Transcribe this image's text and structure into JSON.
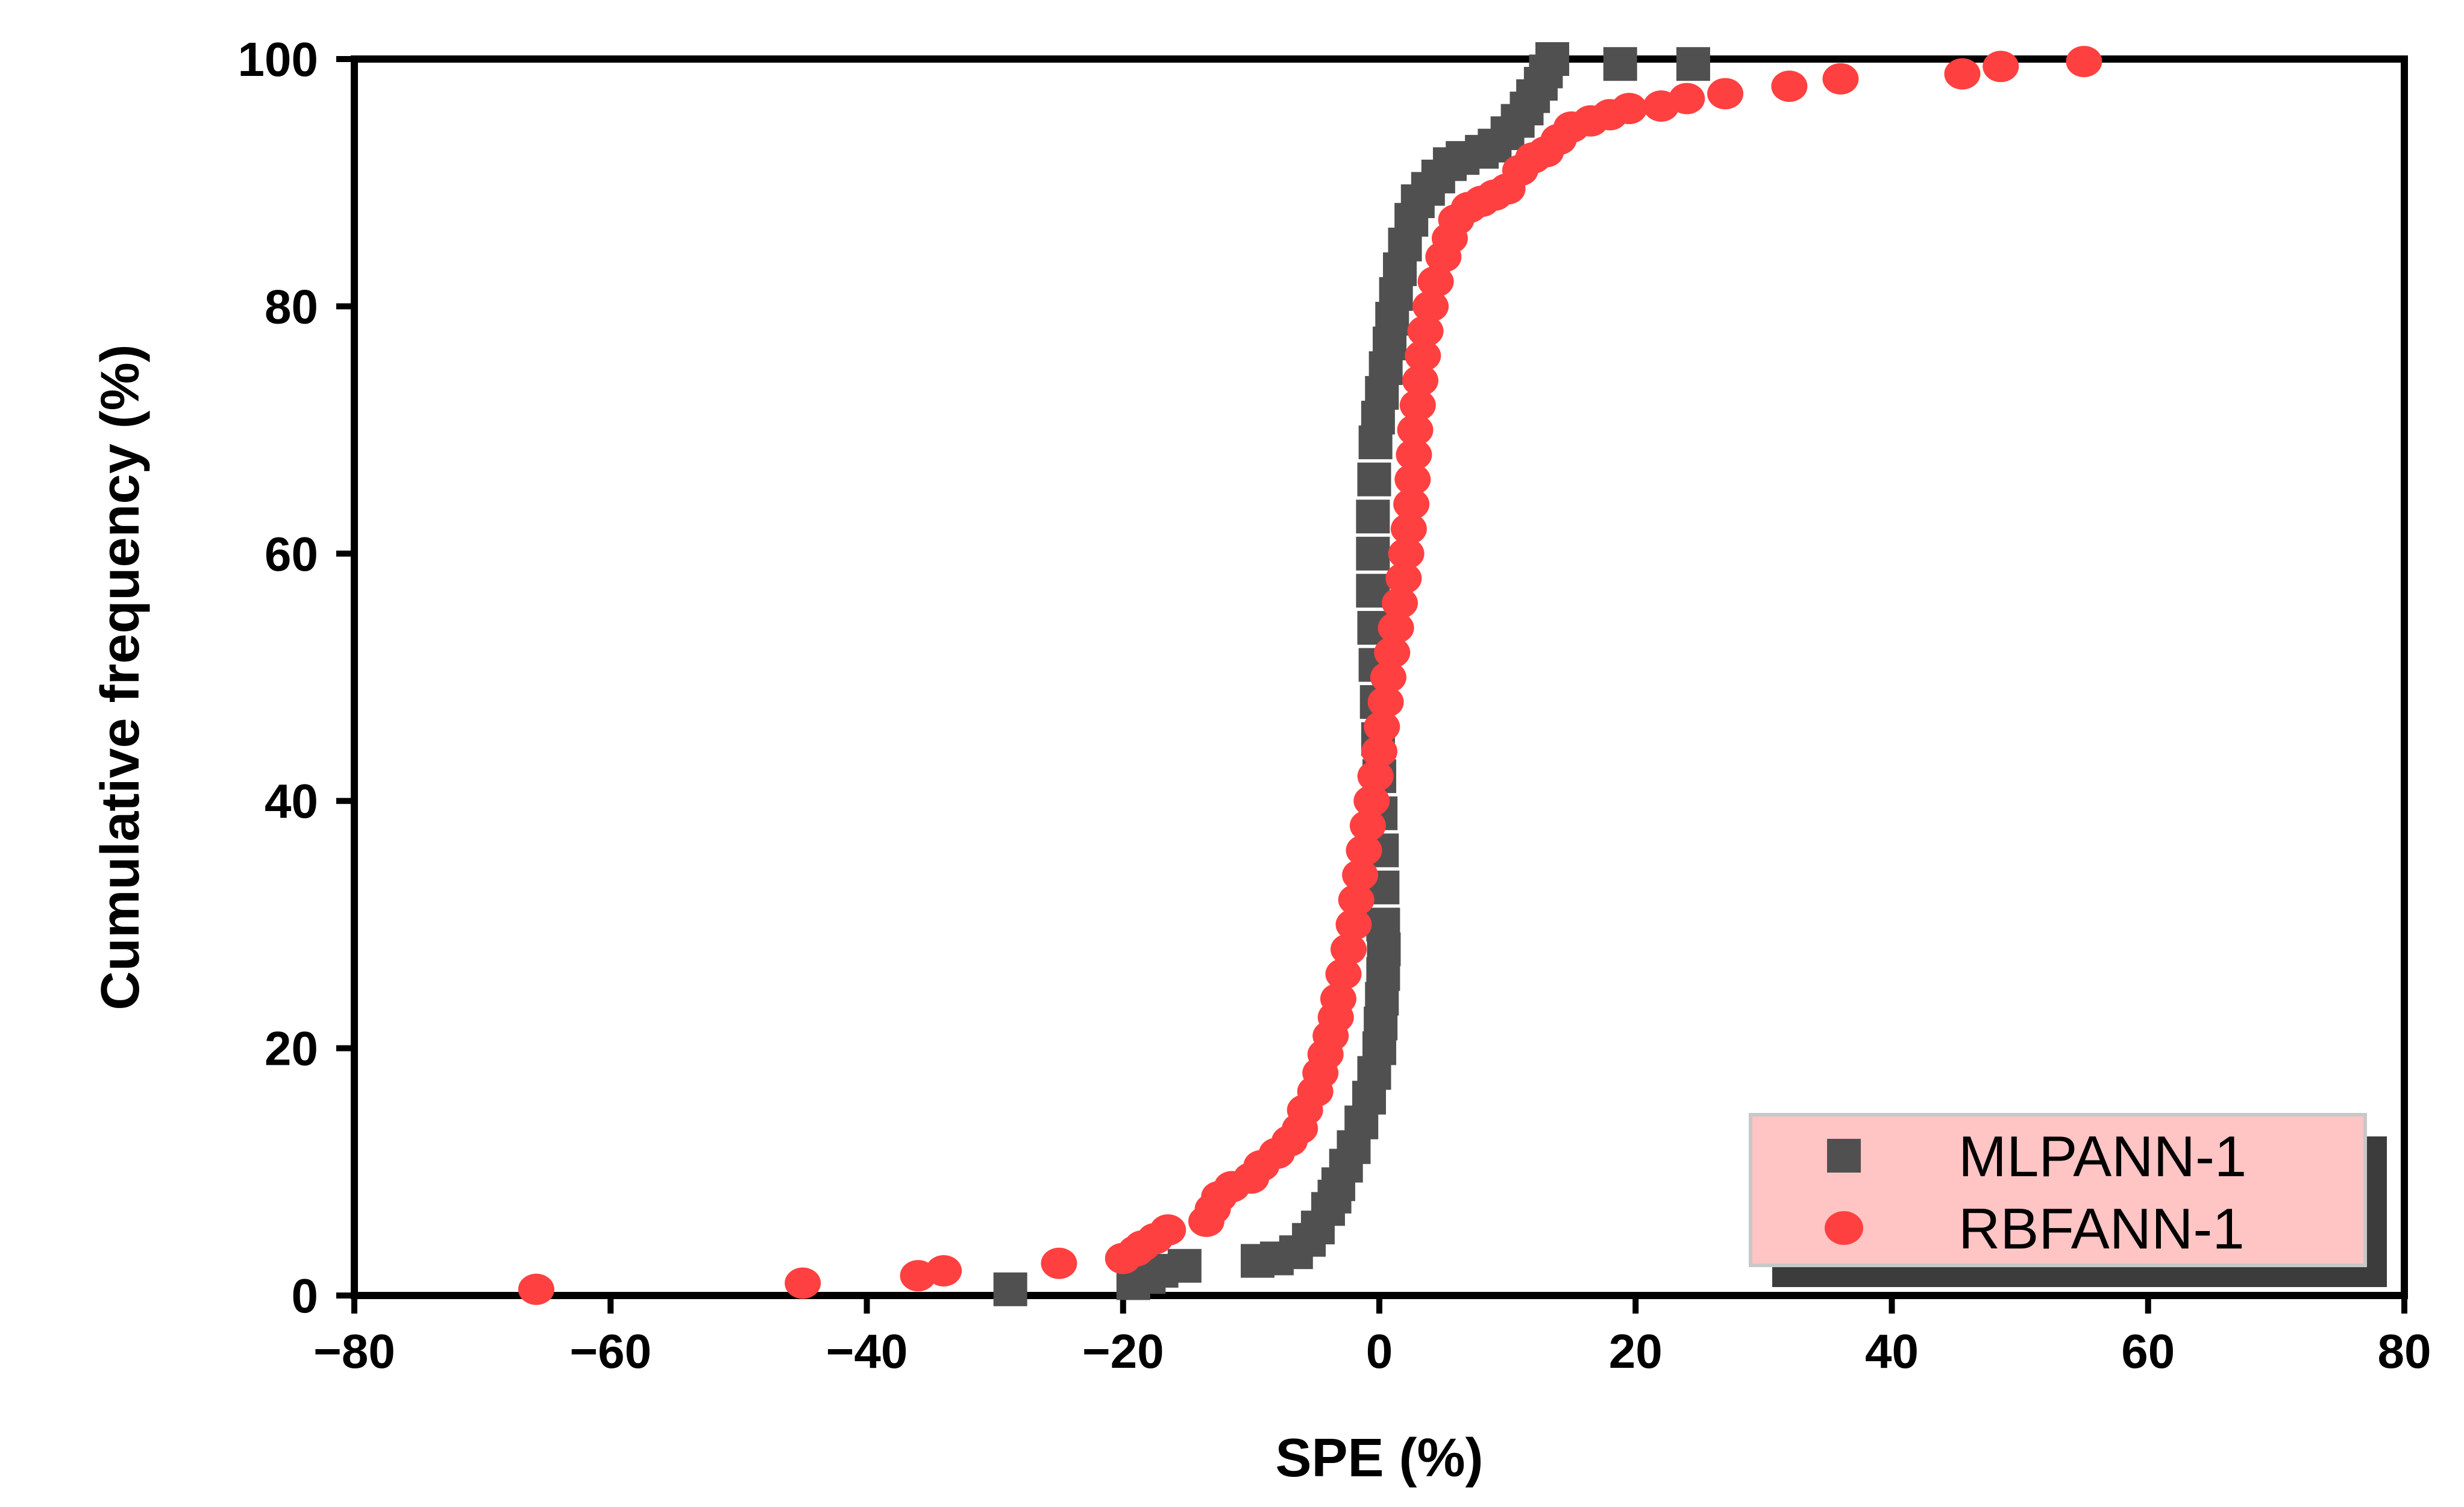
{
  "chart_data": {
    "type": "scatter",
    "title": "",
    "xlabel": "SPE (%)",
    "ylabel": "Cumulative frequency (%)",
    "xlim": [
      -80,
      80
    ],
    "ylim": [
      0,
      100
    ],
    "xticks": [
      "−80",
      "−60",
      "−40",
      "−20",
      "0",
      "20",
      "40",
      "60",
      "80"
    ],
    "yticks": [
      "0",
      "20",
      "40",
      "60",
      "80",
      "100"
    ],
    "grid": false,
    "legend_position": "bottom-right",
    "legend_background": "#ffc4c4",
    "series": [
      {
        "name": "MLPANN-1",
        "marker": "square",
        "color": "#505050",
        "points": [
          [
            -28.8,
            0.5
          ],
          [
            -19.2,
            1.0
          ],
          [
            -18.0,
            1.5
          ],
          [
            -17.0,
            2.0
          ],
          [
            -15.2,
            2.4
          ],
          [
            -9.5,
            2.8
          ],
          [
            -8.0,
            3.0
          ],
          [
            -6.5,
            3.5
          ],
          [
            -5.5,
            4.5
          ],
          [
            -4.8,
            5.5
          ],
          [
            -4.0,
            7.0
          ],
          [
            -3.5,
            8.0
          ],
          [
            -3.2,
            9.0
          ],
          [
            -2.6,
            10.5
          ],
          [
            -2.0,
            12.0
          ],
          [
            -1.4,
            14.0
          ],
          [
            -0.8,
            16.0
          ],
          [
            -0.4,
            18.0
          ],
          [
            0.0,
            20.0
          ],
          [
            0.1,
            22.0
          ],
          [
            0.2,
            24.0
          ],
          [
            0.3,
            26.0
          ],
          [
            0.35,
            28.0
          ],
          [
            0.3,
            30.0
          ],
          [
            0.25,
            33.0
          ],
          [
            0.2,
            36.0
          ],
          [
            0.1,
            39.0
          ],
          [
            0.0,
            42.0
          ],
          [
            -0.1,
            45.0
          ],
          [
            -0.2,
            48.0
          ],
          [
            -0.3,
            51.0
          ],
          [
            -0.4,
            54.0
          ],
          [
            -0.5,
            57.0
          ],
          [
            -0.5,
            60.0
          ],
          [
            -0.5,
            63.0
          ],
          [
            -0.4,
            66.0
          ],
          [
            -0.3,
            69.0
          ],
          [
            -0.1,
            71.0
          ],
          [
            0.2,
            73.0
          ],
          [
            0.5,
            75.0
          ],
          [
            0.8,
            77.0
          ],
          [
            1.0,
            79.0
          ],
          [
            1.3,
            81.0
          ],
          [
            1.6,
            83.0
          ],
          [
            2.0,
            85.0
          ],
          [
            2.5,
            87.0
          ],
          [
            3.0,
            88.5
          ],
          [
            3.8,
            89.5
          ],
          [
            4.6,
            90.5
          ],
          [
            5.5,
            91.5
          ],
          [
            6.5,
            92.0
          ],
          [
            8.0,
            92.5
          ],
          [
            9.0,
            93.0
          ],
          [
            10.0,
            94.0
          ],
          [
            10.8,
            95.0
          ],
          [
            11.5,
            96.0
          ],
          [
            12.0,
            97.0
          ],
          [
            12.6,
            98.0
          ],
          [
            13.0,
            99.0
          ],
          [
            13.5,
            100.0
          ],
          [
            18.8,
            99.6
          ],
          [
            24.5,
            99.6
          ]
        ]
      },
      {
        "name": "RBFANN-1",
        "marker": "circle",
        "color": "#ff4040",
        "points": [
          [
            -65.8,
            0.5
          ],
          [
            -45.0,
            1.0
          ],
          [
            -36.0,
            1.6
          ],
          [
            -34.0,
            2.0
          ],
          [
            -25.0,
            2.6
          ],
          [
            -20.0,
            3.0
          ],
          [
            -19.0,
            3.6
          ],
          [
            -18.5,
            4.0
          ],
          [
            -17.5,
            4.6
          ],
          [
            -16.5,
            5.3
          ],
          [
            -13.5,
            6.0
          ],
          [
            -13.0,
            7.0
          ],
          [
            -12.5,
            8.0
          ],
          [
            -11.5,
            8.8
          ],
          [
            -10.0,
            9.5
          ],
          [
            -9.2,
            10.5
          ],
          [
            -8.0,
            11.5
          ],
          [
            -7.0,
            12.5
          ],
          [
            -6.2,
            13.5
          ],
          [
            -5.8,
            15.0
          ],
          [
            -5.0,
            16.5
          ],
          [
            -4.6,
            18.0
          ],
          [
            -4.2,
            19.5
          ],
          [
            -3.8,
            21.0
          ],
          [
            -3.4,
            22.5
          ],
          [
            -3.2,
            24.0
          ],
          [
            -2.8,
            26.0
          ],
          [
            -2.4,
            28.0
          ],
          [
            -2.0,
            30.0
          ],
          [
            -1.8,
            32.0
          ],
          [
            -1.5,
            34.0
          ],
          [
            -1.2,
            36.0
          ],
          [
            -0.9,
            38.0
          ],
          [
            -0.6,
            40.0
          ],
          [
            -0.3,
            42.0
          ],
          [
            0.0,
            44.0
          ],
          [
            0.2,
            46.0
          ],
          [
            0.5,
            48.0
          ],
          [
            0.7,
            50.0
          ],
          [
            1.0,
            52.0
          ],
          [
            1.3,
            54.0
          ],
          [
            1.6,
            56.0
          ],
          [
            1.9,
            58.0
          ],
          [
            2.1,
            60.0
          ],
          [
            2.3,
            62.0
          ],
          [
            2.5,
            64.0
          ],
          [
            2.6,
            66.0
          ],
          [
            2.7,
            68.0
          ],
          [
            2.8,
            70.0
          ],
          [
            3.0,
            72.0
          ],
          [
            3.2,
            74.0
          ],
          [
            3.4,
            76.0
          ],
          [
            3.6,
            78.0
          ],
          [
            4.0,
            80.0
          ],
          [
            4.4,
            82.0
          ],
          [
            5.0,
            84.0
          ],
          [
            5.5,
            85.5
          ],
          [
            6.0,
            87.0
          ],
          [
            7.0,
            88.0
          ],
          [
            8.0,
            88.5
          ],
          [
            9.0,
            89.0
          ],
          [
            10.0,
            89.5
          ],
          [
            11.0,
            91.0
          ],
          [
            12.0,
            92.0
          ],
          [
            13.0,
            92.5
          ],
          [
            14.0,
            93.5
          ],
          [
            15.0,
            94.5
          ],
          [
            16.5,
            95.0
          ],
          [
            18.0,
            95.5
          ],
          [
            19.5,
            96.0
          ],
          [
            22.0,
            96.2
          ],
          [
            24.0,
            96.8
          ],
          [
            27.0,
            97.2
          ],
          [
            32.0,
            97.8
          ],
          [
            36.0,
            98.4
          ],
          [
            45.5,
            98.8
          ],
          [
            48.5,
            99.4
          ],
          [
            55.0,
            99.8
          ]
        ]
      }
    ]
  }
}
